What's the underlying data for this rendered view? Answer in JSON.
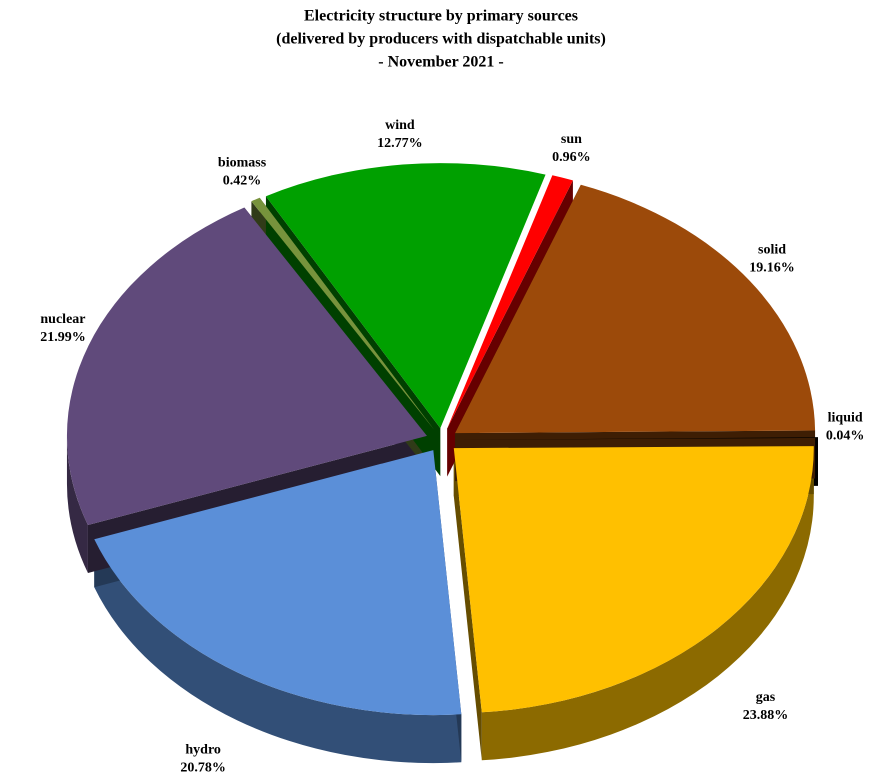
{
  "chart_data": {
    "type": "pie",
    "title_lines": [
      "Electricity structure by primary sources",
      "(delivered by producers with dispatchable units)",
      "- November 2021 -"
    ],
    "categories": [
      "liquid",
      "gas",
      "hydro",
      "nuclear",
      "biomass",
      "wind",
      "sun",
      "solid"
    ],
    "values": [
      0.04,
      23.88,
      20.78,
      21.99,
      0.42,
      12.77,
      0.96,
      19.16
    ],
    "value_labels": [
      "0.04%",
      "23.88%",
      "20.78%",
      "21.99%",
      "0.42%",
      "12.77%",
      "0.96%",
      "19.16%"
    ],
    "colors": [
      "#000000",
      "#FFC000",
      "#5B8FD8",
      "#604A7B",
      "#77933C",
      "#00A000",
      "#FF0000",
      "#9C4A0A"
    ]
  }
}
